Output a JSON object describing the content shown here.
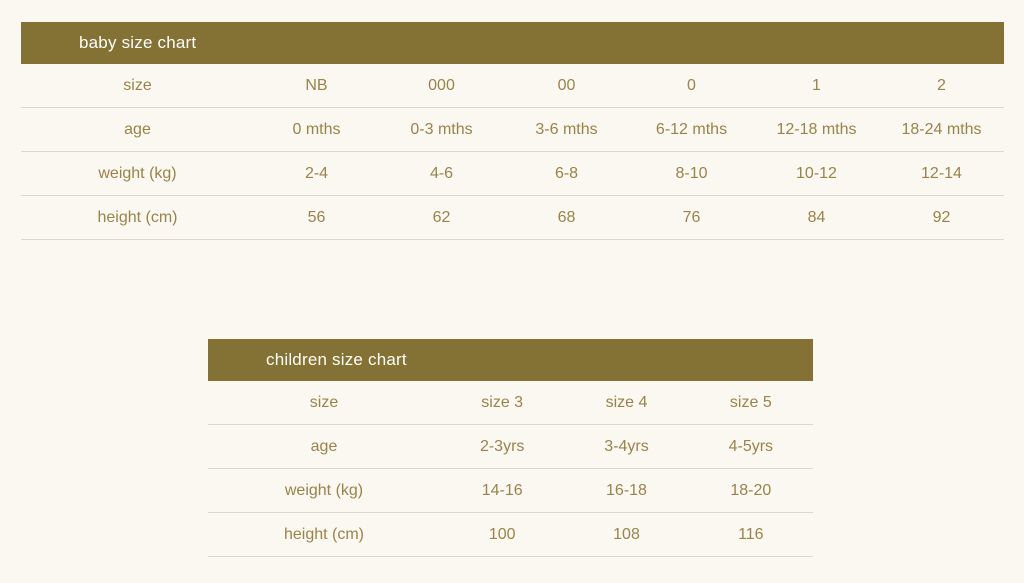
{
  "page": {
    "background_color": "#faf8f1",
    "accent_color": "#847134",
    "text_color": "#9a8349",
    "divider_color": "#dcd8d0"
  },
  "baby_chart": {
    "title": "baby size chart",
    "rows": [
      {
        "label": "size",
        "values": [
          "NB",
          "000",
          "00",
          "0",
          "1",
          "2"
        ]
      },
      {
        "label": "age",
        "values": [
          "0 mths",
          "0-3 mths",
          "3-6 mths",
          "6-12 mths",
          "12-18 mths",
          "18-24 mths"
        ]
      },
      {
        "label": "weight (kg)",
        "values": [
          "2-4",
          "4-6",
          "6-8",
          "8-10",
          "10-12",
          "12-14"
        ]
      },
      {
        "label": "height (cm)",
        "values": [
          "56",
          "62",
          "68",
          "76",
          "84",
          "92"
        ]
      }
    ]
  },
  "children_chart": {
    "title": "children size chart",
    "rows": [
      {
        "label": "size",
        "values": [
          "size 3",
          "size 4",
          "size 5"
        ]
      },
      {
        "label": "age",
        "values": [
          "2-3yrs",
          "3-4yrs",
          "4-5yrs"
        ]
      },
      {
        "label": "weight (kg)",
        "values": [
          "14-16",
          "16-18",
          "18-20"
        ]
      },
      {
        "label": "height (cm)",
        "values": [
          "100",
          "108",
          "116"
        ]
      }
    ]
  },
  "chart_data": [
    {
      "type": "table",
      "title": "baby size chart",
      "row_headers": [
        "size",
        "age",
        "weight (kg)",
        "height (cm)"
      ],
      "rows": [
        [
          "NB",
          "000",
          "00",
          "0",
          "1",
          "2"
        ],
        [
          "0 mths",
          "0-3 mths",
          "3-6 mths",
          "6-12 mths",
          "12-18 mths",
          "18-24 mths"
        ],
        [
          "2-4",
          "4-6",
          "6-8",
          "8-10",
          "10-12",
          "12-14"
        ],
        [
          "56",
          "62",
          "68",
          "76",
          "84",
          "92"
        ]
      ]
    },
    {
      "type": "table",
      "title": "children size chart",
      "row_headers": [
        "size",
        "age",
        "weight (kg)",
        "height (cm)"
      ],
      "rows": [
        [
          "size 3",
          "size 4",
          "size 5"
        ],
        [
          "2-3yrs",
          "3-4yrs",
          "4-5yrs"
        ],
        [
          "14-16",
          "16-18",
          "18-20"
        ],
        [
          "100",
          "108",
          "116"
        ]
      ]
    }
  ]
}
